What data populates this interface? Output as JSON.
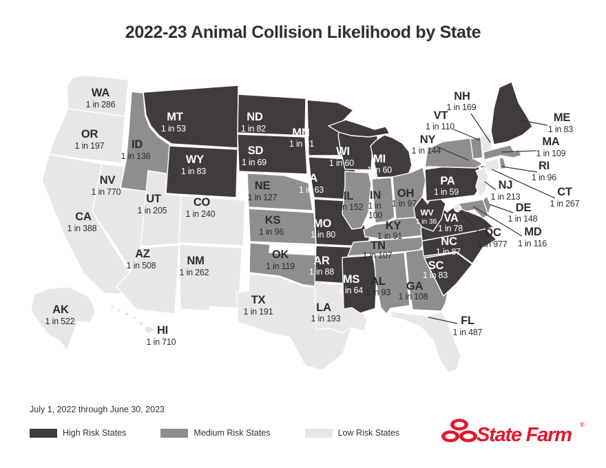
{
  "footer": {
    "period": "July 1, 2022 through June 30, 2023"
  },
  "legend": [
    {
      "label": "High Risk States",
      "risk": "high"
    },
    {
      "label": "Medium Risk States",
      "risk": "medium"
    },
    {
      "label": "Low Risk States",
      "risk": "low"
    }
  ],
  "colors": {
    "high": "#403c3c",
    "medium": "#8f8e8e",
    "low": "#e8e7e6",
    "label_dark": "#2e2b2c",
    "label_light": "#ffffff",
    "callout_line": "#332f30",
    "brand_red": "#e2182c"
  },
  "brand": {
    "name": "State Farm",
    "registered": "®"
  },
  "chart_data": {
    "type": "heatmap",
    "subtype": "choropleth-us-state-map",
    "title": "2022-23 Animal Collision Likelihood by State",
    "value_format": "1 in N odds of animal collision",
    "legend_position": "bottom-left",
    "categories": [
      "High Risk States",
      "Medium Risk States",
      "Low Risk States"
    ],
    "states": [
      {
        "abbr": "WA",
        "value": "1 in 286",
        "risk": "low"
      },
      {
        "abbr": "OR",
        "value": "1 in 197",
        "risk": "low"
      },
      {
        "abbr": "CA",
        "value": "1 in 388",
        "risk": "low"
      },
      {
        "abbr": "NV",
        "value": "1 in 770",
        "risk": "low"
      },
      {
        "abbr": "ID",
        "value": "1 in 136",
        "risk": "medium"
      },
      {
        "abbr": "MT",
        "value": "1 in 53",
        "risk": "high"
      },
      {
        "abbr": "WY",
        "value": "1 in 83",
        "risk": "high"
      },
      {
        "abbr": "UT",
        "value": "1 in 205",
        "risk": "low"
      },
      {
        "abbr": "CO",
        "value": "1 in 240",
        "risk": "low"
      },
      {
        "abbr": "AZ",
        "value": "1 in 508",
        "risk": "low"
      },
      {
        "abbr": "NM",
        "value": "1 in 262",
        "risk": "low"
      },
      {
        "abbr": "AK",
        "value": "1 in 522",
        "risk": "low"
      },
      {
        "abbr": "HI",
        "value": "1 in 710",
        "risk": "low"
      },
      {
        "abbr": "ND",
        "value": "1 in 82",
        "risk": "high"
      },
      {
        "abbr": "SD",
        "value": "1 in 69",
        "risk": "high"
      },
      {
        "abbr": "NE",
        "value": "1 in 127",
        "risk": "medium"
      },
      {
        "abbr": "KS",
        "value": "1 in 96",
        "risk": "medium"
      },
      {
        "abbr": "OK",
        "value": "1 in 119",
        "risk": "medium"
      },
      {
        "abbr": "TX",
        "value": "1 in 191",
        "risk": "low"
      },
      {
        "abbr": "MN",
        "value": "1 in 81",
        "risk": "high"
      },
      {
        "abbr": "IA",
        "value": "1 in 63",
        "risk": "high"
      },
      {
        "abbr": "MO",
        "value": "1 in 80",
        "risk": "high"
      },
      {
        "abbr": "AR",
        "value": "1 in 88",
        "risk": "high"
      },
      {
        "abbr": "LA",
        "value": "1 in 193",
        "risk": "low"
      },
      {
        "abbr": "MS",
        "value": "1 in 64",
        "risk": "high"
      },
      {
        "abbr": "AL",
        "value": "1 in 93",
        "risk": "medium"
      },
      {
        "abbr": "WI",
        "value": "1 in 60",
        "risk": "high"
      },
      {
        "abbr": "IL",
        "value": "1 in 152",
        "risk": "medium"
      },
      {
        "abbr": "MI",
        "value": "1 in 60",
        "risk": "high"
      },
      {
        "abbr": "IN",
        "value": "1 in 100",
        "risk": "medium"
      },
      {
        "abbr": "OH",
        "value": "1 in 97",
        "risk": "medium"
      },
      {
        "abbr": "KY",
        "value": "1 in 91",
        "risk": "medium"
      },
      {
        "abbr": "TN",
        "value": "1 in 107",
        "risk": "medium"
      },
      {
        "abbr": "GA",
        "value": "1 in 108",
        "risk": "medium"
      },
      {
        "abbr": "FL",
        "value": "1 in 487",
        "risk": "low"
      },
      {
        "abbr": "SC",
        "value": "1 in 83",
        "risk": "high"
      },
      {
        "abbr": "NC",
        "value": "1 in 87",
        "risk": "high"
      },
      {
        "abbr": "VA",
        "value": "1 in 78",
        "risk": "high"
      },
      {
        "abbr": "WV",
        "value": "1 in 38",
        "risk": "high"
      },
      {
        "abbr": "PA",
        "value": "1 in 59",
        "risk": "high"
      },
      {
        "abbr": "NY",
        "value": "1 in 144",
        "risk": "medium"
      },
      {
        "abbr": "VT",
        "value": "1 in 110",
        "risk": "medium"
      },
      {
        "abbr": "NH",
        "value": "1 in 169",
        "risk": "low"
      },
      {
        "abbr": "ME",
        "value": "1 in 83",
        "risk": "high"
      },
      {
        "abbr": "MA",
        "value": "1 in 109",
        "risk": "medium"
      },
      {
        "abbr": "RI",
        "value": "1 in 96",
        "risk": "medium"
      },
      {
        "abbr": "CT",
        "value": "1 in 267",
        "risk": "low"
      },
      {
        "abbr": "NJ",
        "value": "1 in 213",
        "risk": "low"
      },
      {
        "abbr": "DE",
        "value": "1 in 148",
        "risk": "medium"
      },
      {
        "abbr": "MD",
        "value": "1 in 116",
        "risk": "medium"
      },
      {
        "abbr": "DC",
        "value": "1 in 977",
        "risk": "low"
      }
    ]
  }
}
